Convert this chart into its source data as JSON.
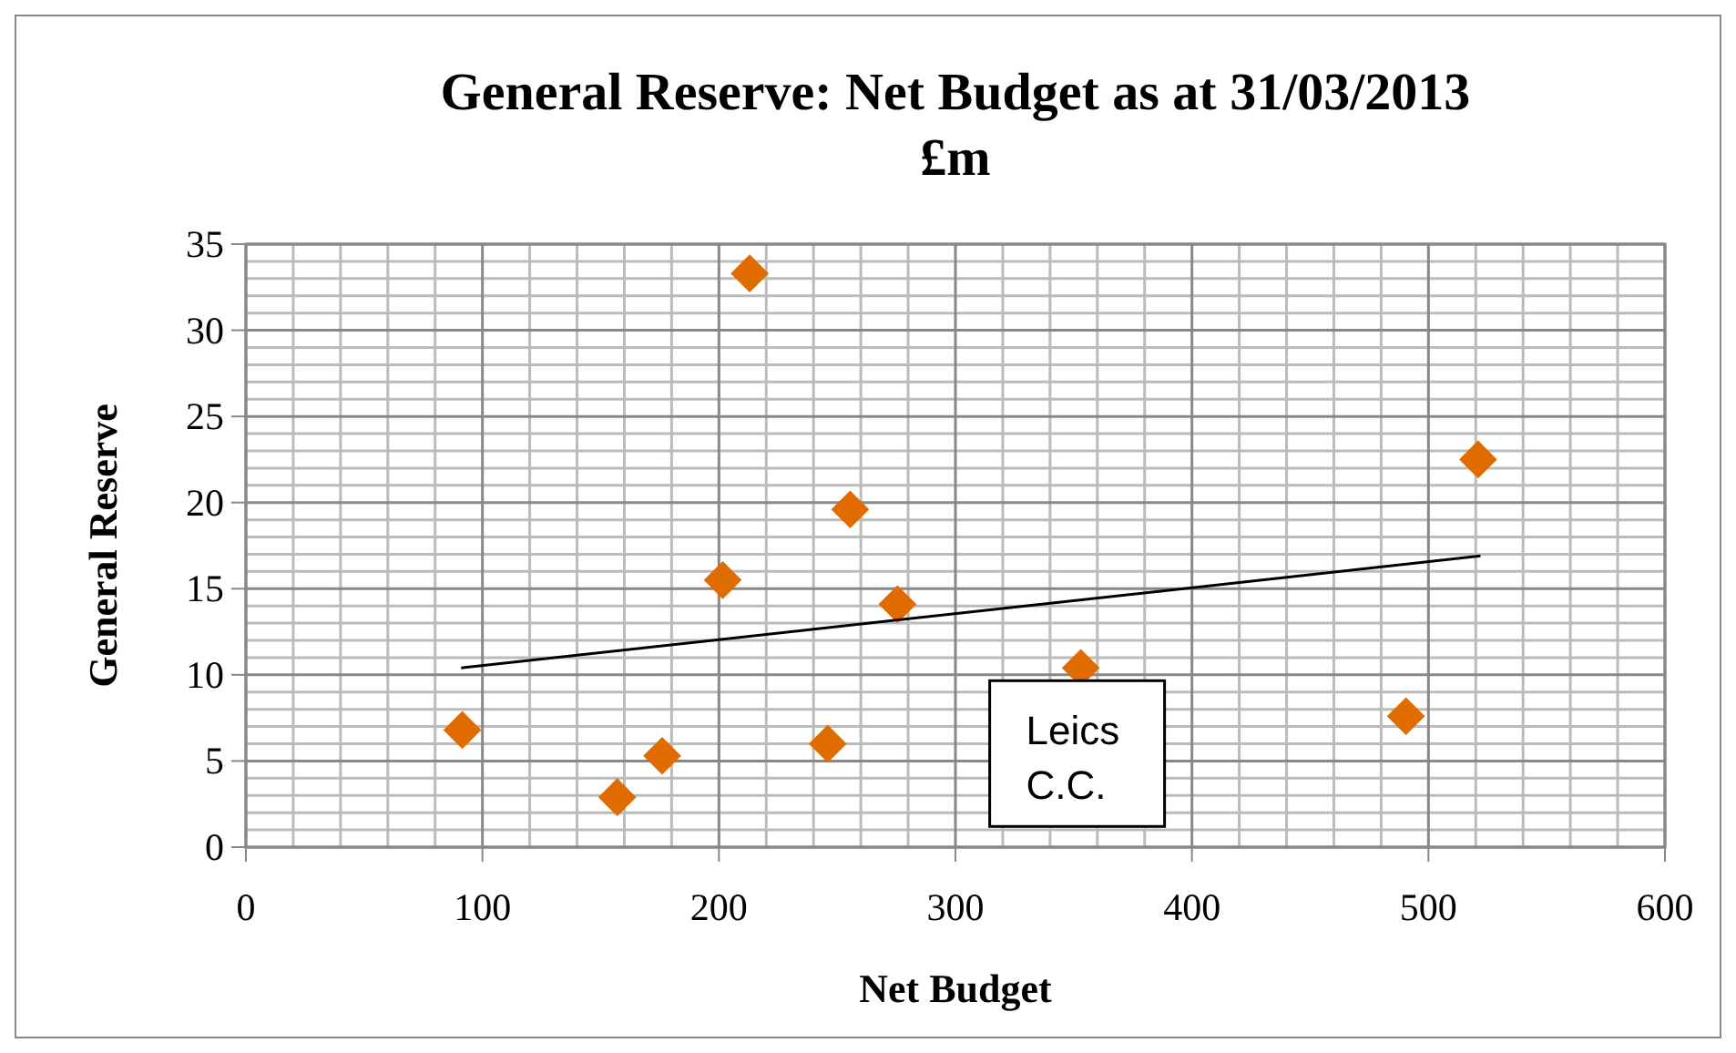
{
  "chart_data": {
    "type": "scatter",
    "title": "General Reserve: Net Budget as at 31/03/2013 £m",
    "xlabel": "Net Budget",
    "ylabel": "General Reserve",
    "xlim": [
      0,
      600
    ],
    "xticks": [
      0,
      100,
      200,
      300,
      400,
      500,
      600
    ],
    "ylim": [
      0,
      35
    ],
    "yticks": [
      0,
      5,
      10,
      15,
      20,
      25,
      30,
      35
    ],
    "grid": true,
    "series": [
      {
        "type": "scatter",
        "color": "#e06c00",
        "marker": "diamond",
        "x": [
          91.5,
          157,
          176,
          201.6,
          213,
          246,
          255.5,
          275.5,
          353,
          490.5,
          521
        ],
        "values": [
          6.8,
          2.9,
          5.3,
          15.5,
          33.3,
          6.0,
          19.6,
          14.1,
          10.4,
          7.6,
          22.5
        ]
      },
      {
        "type": "line",
        "color": "#000000",
        "x": [
          91,
          522
        ],
        "values": [
          10.4,
          16.9
        ],
        "marker": "none"
      }
    ],
    "annotations": [
      {
        "text": "Leics C.C.",
        "x": 353,
        "y": 10.4
      }
    ]
  }
}
